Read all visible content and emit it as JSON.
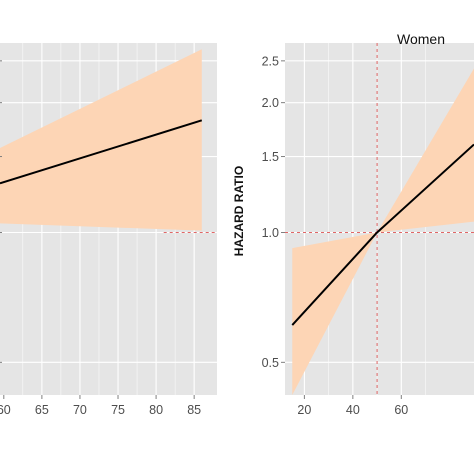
{
  "colors": {
    "panel_bg": "#e5e5e5",
    "grid": "#ffffff",
    "band": "#fdd5b5",
    "line": "#000000",
    "reference": "#e06666",
    "tick_mark": "#7f7f7f"
  },
  "chart_data": [
    {
      "type": "line",
      "title": "",
      "xlabel": "",
      "ylabel": "",
      "x_ticks": [
        "60",
        "65",
        "70",
        "75",
        "80",
        "85"
      ],
      "xlim": [
        59.5,
        88
      ],
      "y_scale": "log",
      "ylim": [
        0.42,
        2.75
      ],
      "grid": true,
      "reference_y": 1.0,
      "series": [
        {
          "x": [
            59.5,
            86
          ],
          "y": [
            1.3,
            1.82
          ]
        }
      ],
      "band": {
        "x": [
          59.5,
          86
        ],
        "lower": [
          1.05,
          1.01
        ],
        "upper": [
          1.57,
          2.66
        ]
      }
    },
    {
      "type": "line",
      "title": "Women",
      "xlabel": "",
      "ylabel": "HAZARD RATIO",
      "x_ticks": [
        "20",
        "40",
        "60"
      ],
      "xlim": [
        12,
        90
      ],
      "y_scale": "log",
      "ylim": [
        0.42,
        2.75
      ],
      "y_ticks": [
        "0.5",
        "1.0",
        "1.5",
        "2.0",
        "2.5"
      ],
      "grid": true,
      "reference_x": 50,
      "reference_y": 1.0,
      "series": [
        {
          "x": [
            15,
            50,
            90
          ],
          "y": [
            0.61,
            1.0,
            1.6
          ]
        }
      ],
      "band": {
        "x": [
          15,
          50,
          90
        ],
        "lower": [
          0.42,
          1.0,
          1.06
        ],
        "upper": [
          0.92,
          1.0,
          2.4
        ]
      }
    }
  ]
}
